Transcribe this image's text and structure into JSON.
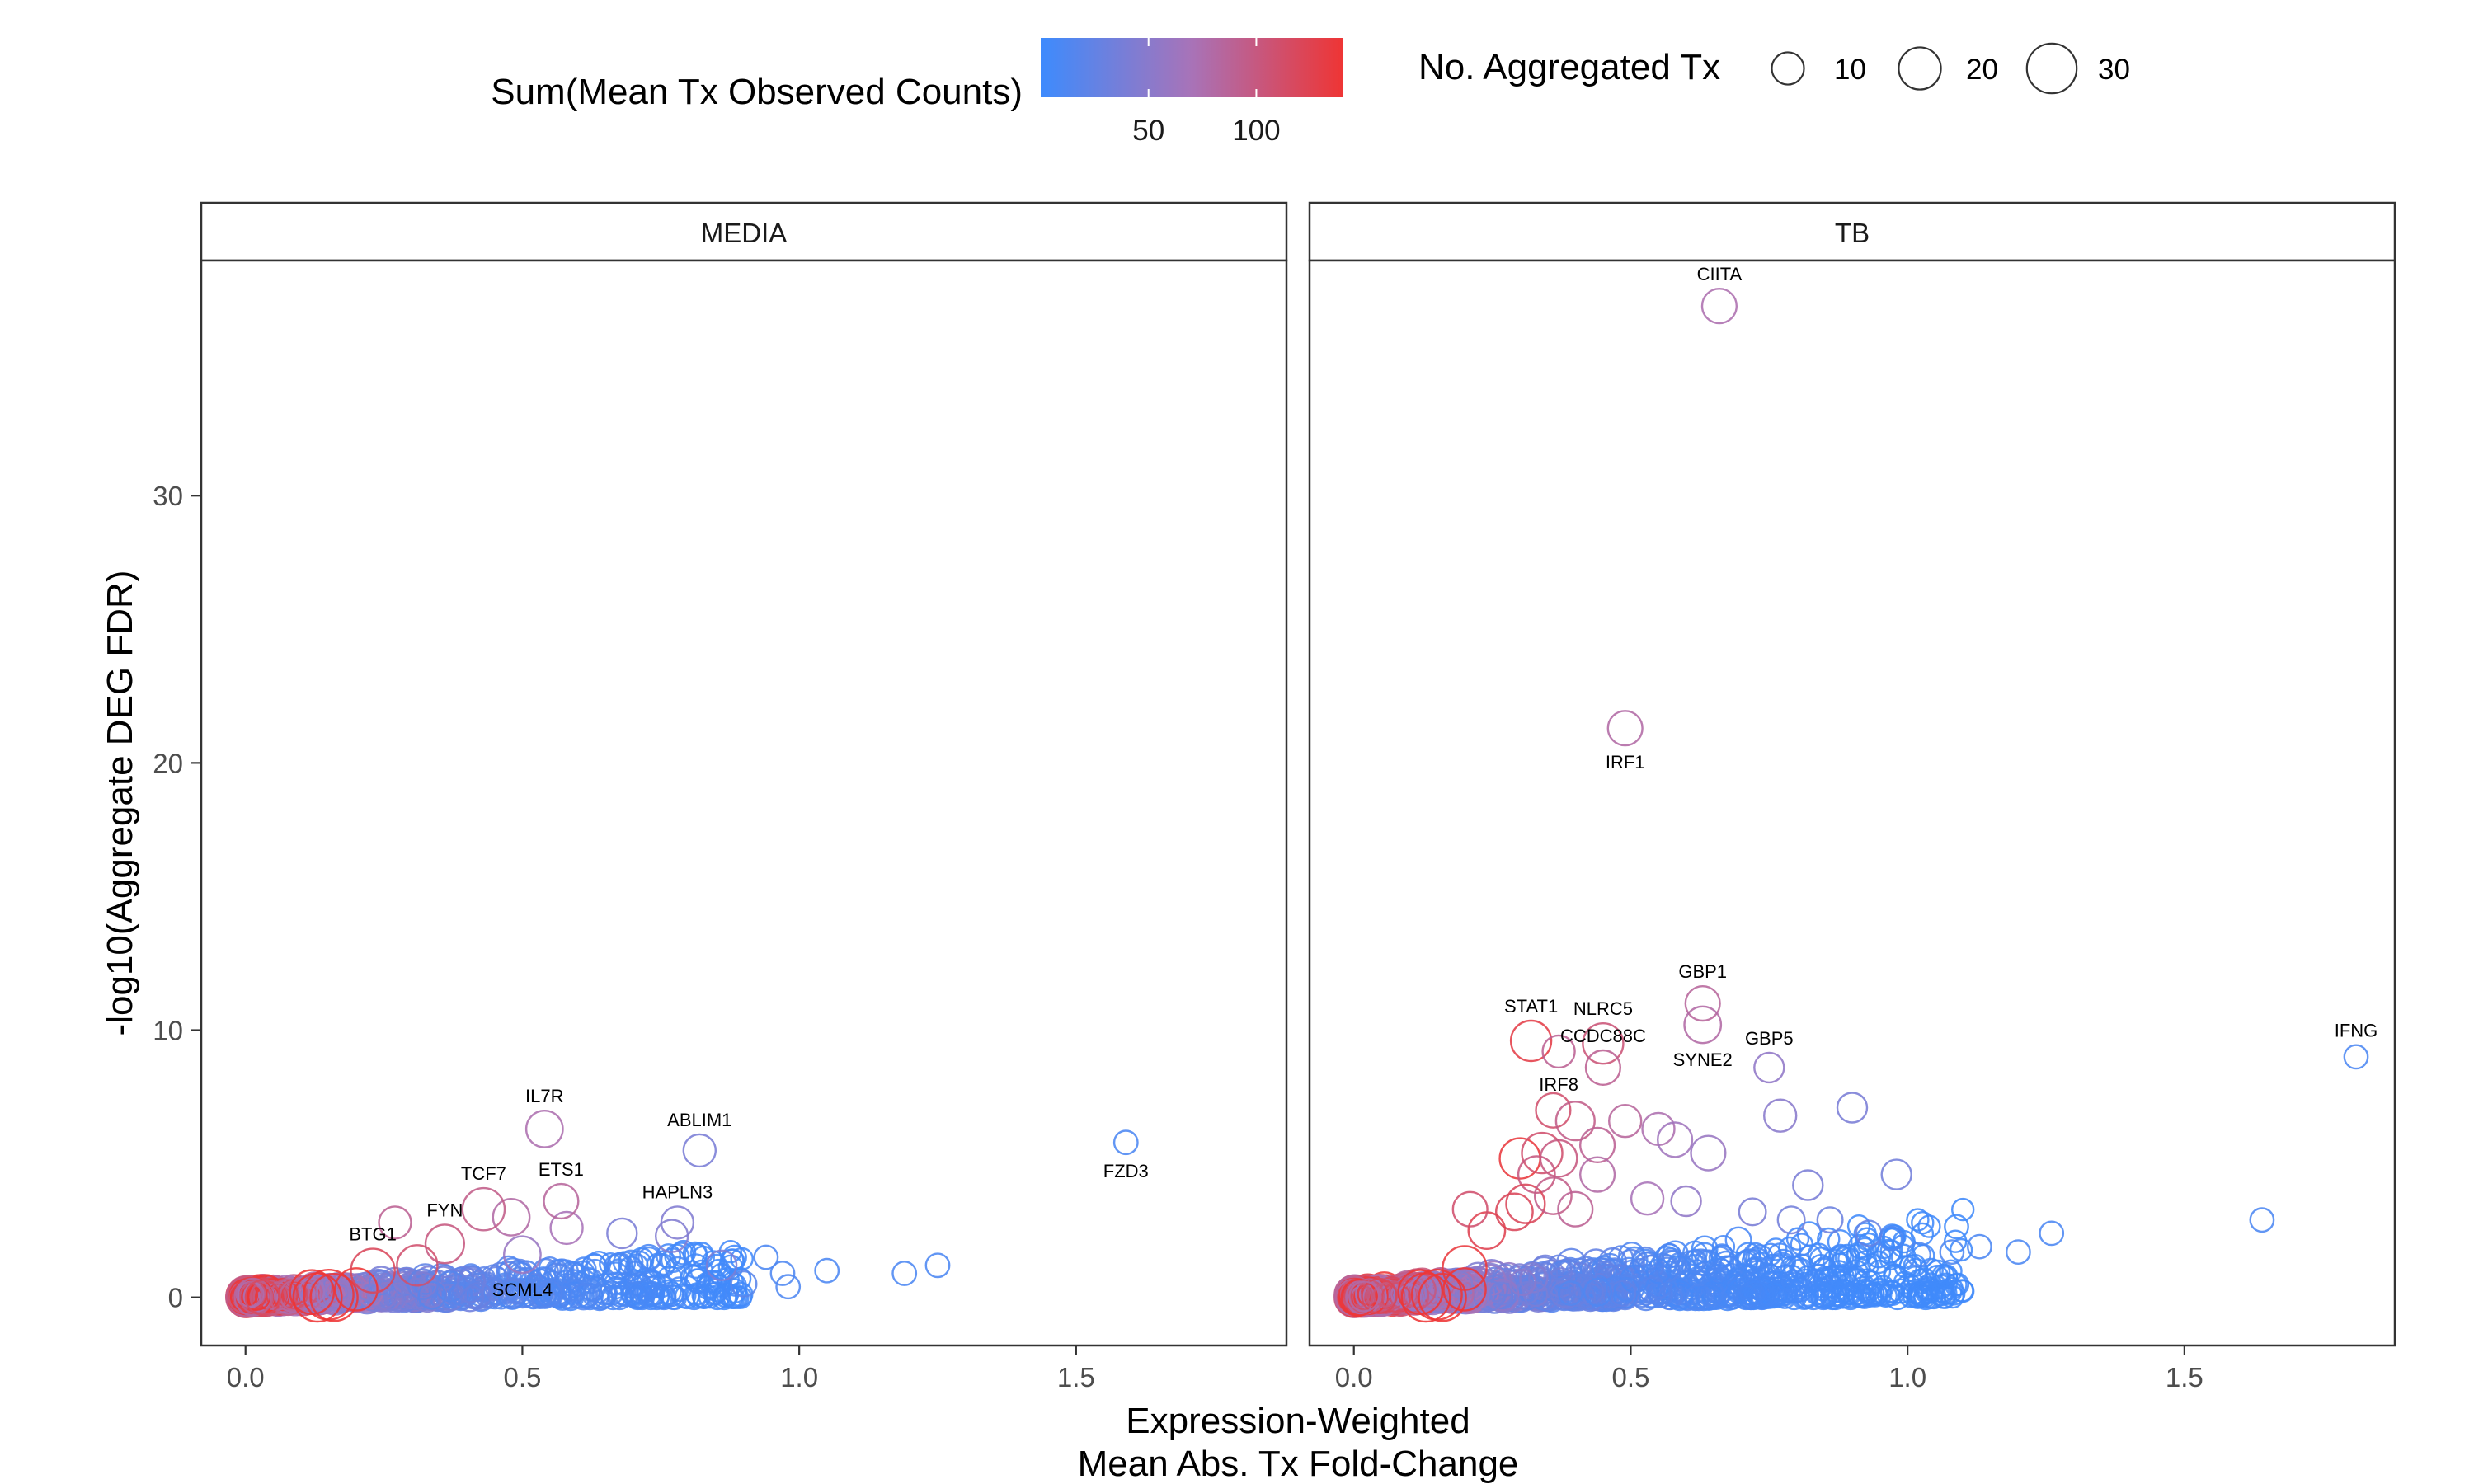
{
  "chart_data": {
    "type": "scatter",
    "xlabel_line1": "Expression-Weighted",
    "xlabel_line2": "Mean Abs. Tx Fold-Change",
    "ylabel": "-log10(Aggregate DEG FDR)",
    "xlim": [
      -0.08,
      1.88
    ],
    "ylim": [
      -1.8,
      38.8
    ],
    "x_ticks": [
      0.0,
      0.5,
      1.0,
      1.5
    ],
    "x_tick_labels": [
      "0.0",
      "0.5",
      "1.0",
      "1.5"
    ],
    "y_ticks": [
      0,
      10,
      20,
      30
    ],
    "y_tick_labels": [
      "0",
      "10",
      "20",
      "30"
    ],
    "grid": false,
    "legend_position": "top",
    "color_legend": {
      "title": "Sum(Mean Tx Observed Counts)",
      "low_color": "#3d8bfd",
      "mid_color": "#a873b8",
      "high_color": "#ee3535",
      "range": [
        0,
        140
      ],
      "ticks": [
        50,
        100
      ],
      "tick_labels": [
        "50",
        "100"
      ]
    },
    "size_legend": {
      "title": "No. Aggregated Tx",
      "values": [
        10,
        20,
        30
      ],
      "labels": [
        "10",
        "20",
        "30"
      ]
    },
    "panels": [
      {
        "name": "MEDIA",
        "labeled_points": [
          {
            "gene": "IL7R",
            "x": 0.54,
            "y": 6.3,
            "ntx": 14,
            "counts": 75
          },
          {
            "gene": "ABLIM1",
            "x": 0.82,
            "y": 5.5,
            "ntx": 10,
            "counts": 40
          },
          {
            "gene": "FZD3",
            "x": 1.59,
            "y": 5.8,
            "ntx": 4,
            "counts": 10
          },
          {
            "gene": "ETS1",
            "x": 0.57,
            "y": 3.6,
            "ntx": 12,
            "counts": 85
          },
          {
            "gene": "TCF7",
            "x": 0.43,
            "y": 3.3,
            "ntx": 20,
            "counts": 95
          },
          {
            "gene": "HAPLN3",
            "x": 0.78,
            "y": 2.8,
            "ntx": 10,
            "counts": 45
          },
          {
            "gene": "FYN",
            "x": 0.36,
            "y": 2.0,
            "ntx": 16,
            "counts": 100
          },
          {
            "gene": "SCML4",
            "x": 0.5,
            "y": 1.6,
            "ntx": 14,
            "counts": 60
          },
          {
            "gene": "BTG1",
            "x": 0.23,
            "y": 1.0,
            "ntx": 22,
            "counts": 120
          }
        ],
        "points": [
          {
            "x": 0.27,
            "y": 2.8,
            "ntx": 10,
            "counts": 90
          },
          {
            "x": 0.48,
            "y": 3.0,
            "ntx": 14,
            "counts": 80
          },
          {
            "x": 0.58,
            "y": 2.6,
            "ntx": 10,
            "counts": 70
          },
          {
            "x": 0.68,
            "y": 2.4,
            "ntx": 8,
            "counts": 40
          },
          {
            "x": 0.77,
            "y": 2.3,
            "ntx": 10,
            "counts": 45
          },
          {
            "x": 0.86,
            "y": 1.2,
            "ntx": 8,
            "counts": 40
          },
          {
            "x": 0.94,
            "y": 1.5,
            "ntx": 4,
            "counts": 10
          },
          {
            "x": 0.97,
            "y": 0.9,
            "ntx": 4,
            "counts": 12
          },
          {
            "x": 0.98,
            "y": 0.4,
            "ntx": 4,
            "counts": 12
          },
          {
            "x": 1.05,
            "y": 1.0,
            "ntx": 4,
            "counts": 10
          },
          {
            "x": 1.19,
            "y": 0.9,
            "ntx": 4,
            "counts": 10
          },
          {
            "x": 1.25,
            "y": 1.2,
            "ntx": 4,
            "counts": 10
          },
          {
            "x": 0.9,
            "y": 0.5,
            "ntx": 5,
            "counts": 18
          },
          {
            "x": 0.31,
            "y": 1.2,
            "ntx": 18,
            "counts": 110
          }
        ],
        "cloud": {
          "x_max": 0.9,
          "y_scale": 2.2,
          "count": 720,
          "seed": 11
        }
      },
      {
        "name": "TB",
        "labeled_points": [
          {
            "gene": "CIITA",
            "x": 0.66,
            "y": 37.1,
            "ntx": 12,
            "counts": 75
          },
          {
            "gene": "IRF1",
            "x": 0.49,
            "y": 21.3,
            "ntx": 12,
            "counts": 80
          },
          {
            "gene": "GBP1",
            "x": 0.63,
            "y": 11.0,
            "ntx": 12,
            "counts": 85
          },
          {
            "gene": "STAT1",
            "x": 0.32,
            "y": 9.6,
            "ntx": 18,
            "counts": 130
          },
          {
            "gene": "NLRC5",
            "x": 0.45,
            "y": 9.5,
            "ntx": 18,
            "counts": 105
          },
          {
            "gene": "SYNE2",
            "x": 0.63,
            "y": 10.2,
            "ntx": 14,
            "counts": 80
          },
          {
            "gene": "IRF8",
            "x": 0.37,
            "y": 9.2,
            "ntx": 10,
            "counts": 90
          },
          {
            "gene": "IFNG",
            "x": 1.81,
            "y": 9.0,
            "ntx": 4,
            "counts": 10
          },
          {
            "gene": "GBP5",
            "x": 0.75,
            "y": 8.6,
            "ntx": 8,
            "counts": 55
          },
          {
            "gene": "CCDC88C",
            "x": 0.45,
            "y": 8.6,
            "ntx": 12,
            "counts": 90
          }
        ],
        "points": [
          {
            "x": 0.77,
            "y": 6.8,
            "ntx": 10,
            "counts": 50
          },
          {
            "x": 0.9,
            "y": 7.1,
            "ntx": 8,
            "counts": 40
          },
          {
            "x": 0.36,
            "y": 7.0,
            "ntx": 12,
            "counts": 110
          },
          {
            "x": 0.4,
            "y": 6.6,
            "ntx": 16,
            "counts": 95
          },
          {
            "x": 0.49,
            "y": 6.6,
            "ntx": 10,
            "counts": 85
          },
          {
            "x": 0.55,
            "y": 6.3,
            "ntx": 10,
            "counts": 75
          },
          {
            "x": 0.58,
            "y": 5.9,
            "ntx": 12,
            "counts": 65
          },
          {
            "x": 0.64,
            "y": 5.4,
            "ntx": 12,
            "counts": 60
          },
          {
            "x": 0.3,
            "y": 5.2,
            "ntx": 18,
            "counts": 135
          },
          {
            "x": 0.34,
            "y": 5.4,
            "ntx": 18,
            "counts": 110
          },
          {
            "x": 0.37,
            "y": 5.2,
            "ntx": 14,
            "counts": 100
          },
          {
            "x": 0.44,
            "y": 5.7,
            "ntx": 12,
            "counts": 90
          },
          {
            "x": 0.33,
            "y": 4.6,
            "ntx": 14,
            "counts": 100
          },
          {
            "x": 0.44,
            "y": 4.6,
            "ntx": 12,
            "counts": 80
          },
          {
            "x": 0.82,
            "y": 4.2,
            "ntx": 8,
            "counts": 40
          },
          {
            "x": 0.98,
            "y": 4.6,
            "ntx": 8,
            "counts": 35
          },
          {
            "x": 0.31,
            "y": 3.5,
            "ntx": 16,
            "counts": 120
          },
          {
            "x": 0.29,
            "y": 3.2,
            "ntx": 14,
            "counts": 120
          },
          {
            "x": 0.24,
            "y": 2.5,
            "ntx": 14,
            "counts": 125
          },
          {
            "x": 0.21,
            "y": 3.3,
            "ntx": 12,
            "counts": 110
          },
          {
            "x": 0.36,
            "y": 3.8,
            "ntx": 14,
            "counts": 95
          },
          {
            "x": 0.4,
            "y": 3.3,
            "ntx": 12,
            "counts": 90
          },
          {
            "x": 0.53,
            "y": 3.7,
            "ntx": 10,
            "counts": 70
          },
          {
            "x": 0.6,
            "y": 3.6,
            "ntx": 8,
            "counts": 55
          },
          {
            "x": 0.72,
            "y": 3.2,
            "ntx": 6,
            "counts": 40
          },
          {
            "x": 0.79,
            "y": 2.9,
            "ntx": 6,
            "counts": 35
          },
          {
            "x": 0.86,
            "y": 2.9,
            "ntx": 5,
            "counts": 30
          },
          {
            "x": 0.93,
            "y": 2.4,
            "ntx": 5,
            "counts": 25
          },
          {
            "x": 0.2,
            "y": 1.1,
            "ntx": 22,
            "counts": 135
          },
          {
            "x": 1.26,
            "y": 2.4,
            "ntx": 4,
            "counts": 10
          },
          {
            "x": 1.64,
            "y": 2.9,
            "ntx": 4,
            "counts": 10
          },
          {
            "x": 1.13,
            "y": 1.9,
            "ntx": 4,
            "counts": 10
          },
          {
            "x": 1.2,
            "y": 1.7,
            "ntx": 4,
            "counts": 10
          },
          {
            "x": 1.08,
            "y": 1.7,
            "ntx": 4,
            "counts": 12
          },
          {
            "x": 0.97,
            "y": 2.2,
            "ntx": 4,
            "counts": 12
          },
          {
            "x": 1.02,
            "y": 1.6,
            "ntx": 4,
            "counts": 12
          }
        ],
        "cloud": {
          "x_max": 1.1,
          "y_scale": 3.0,
          "count": 1200,
          "seed": 29
        }
      }
    ]
  }
}
